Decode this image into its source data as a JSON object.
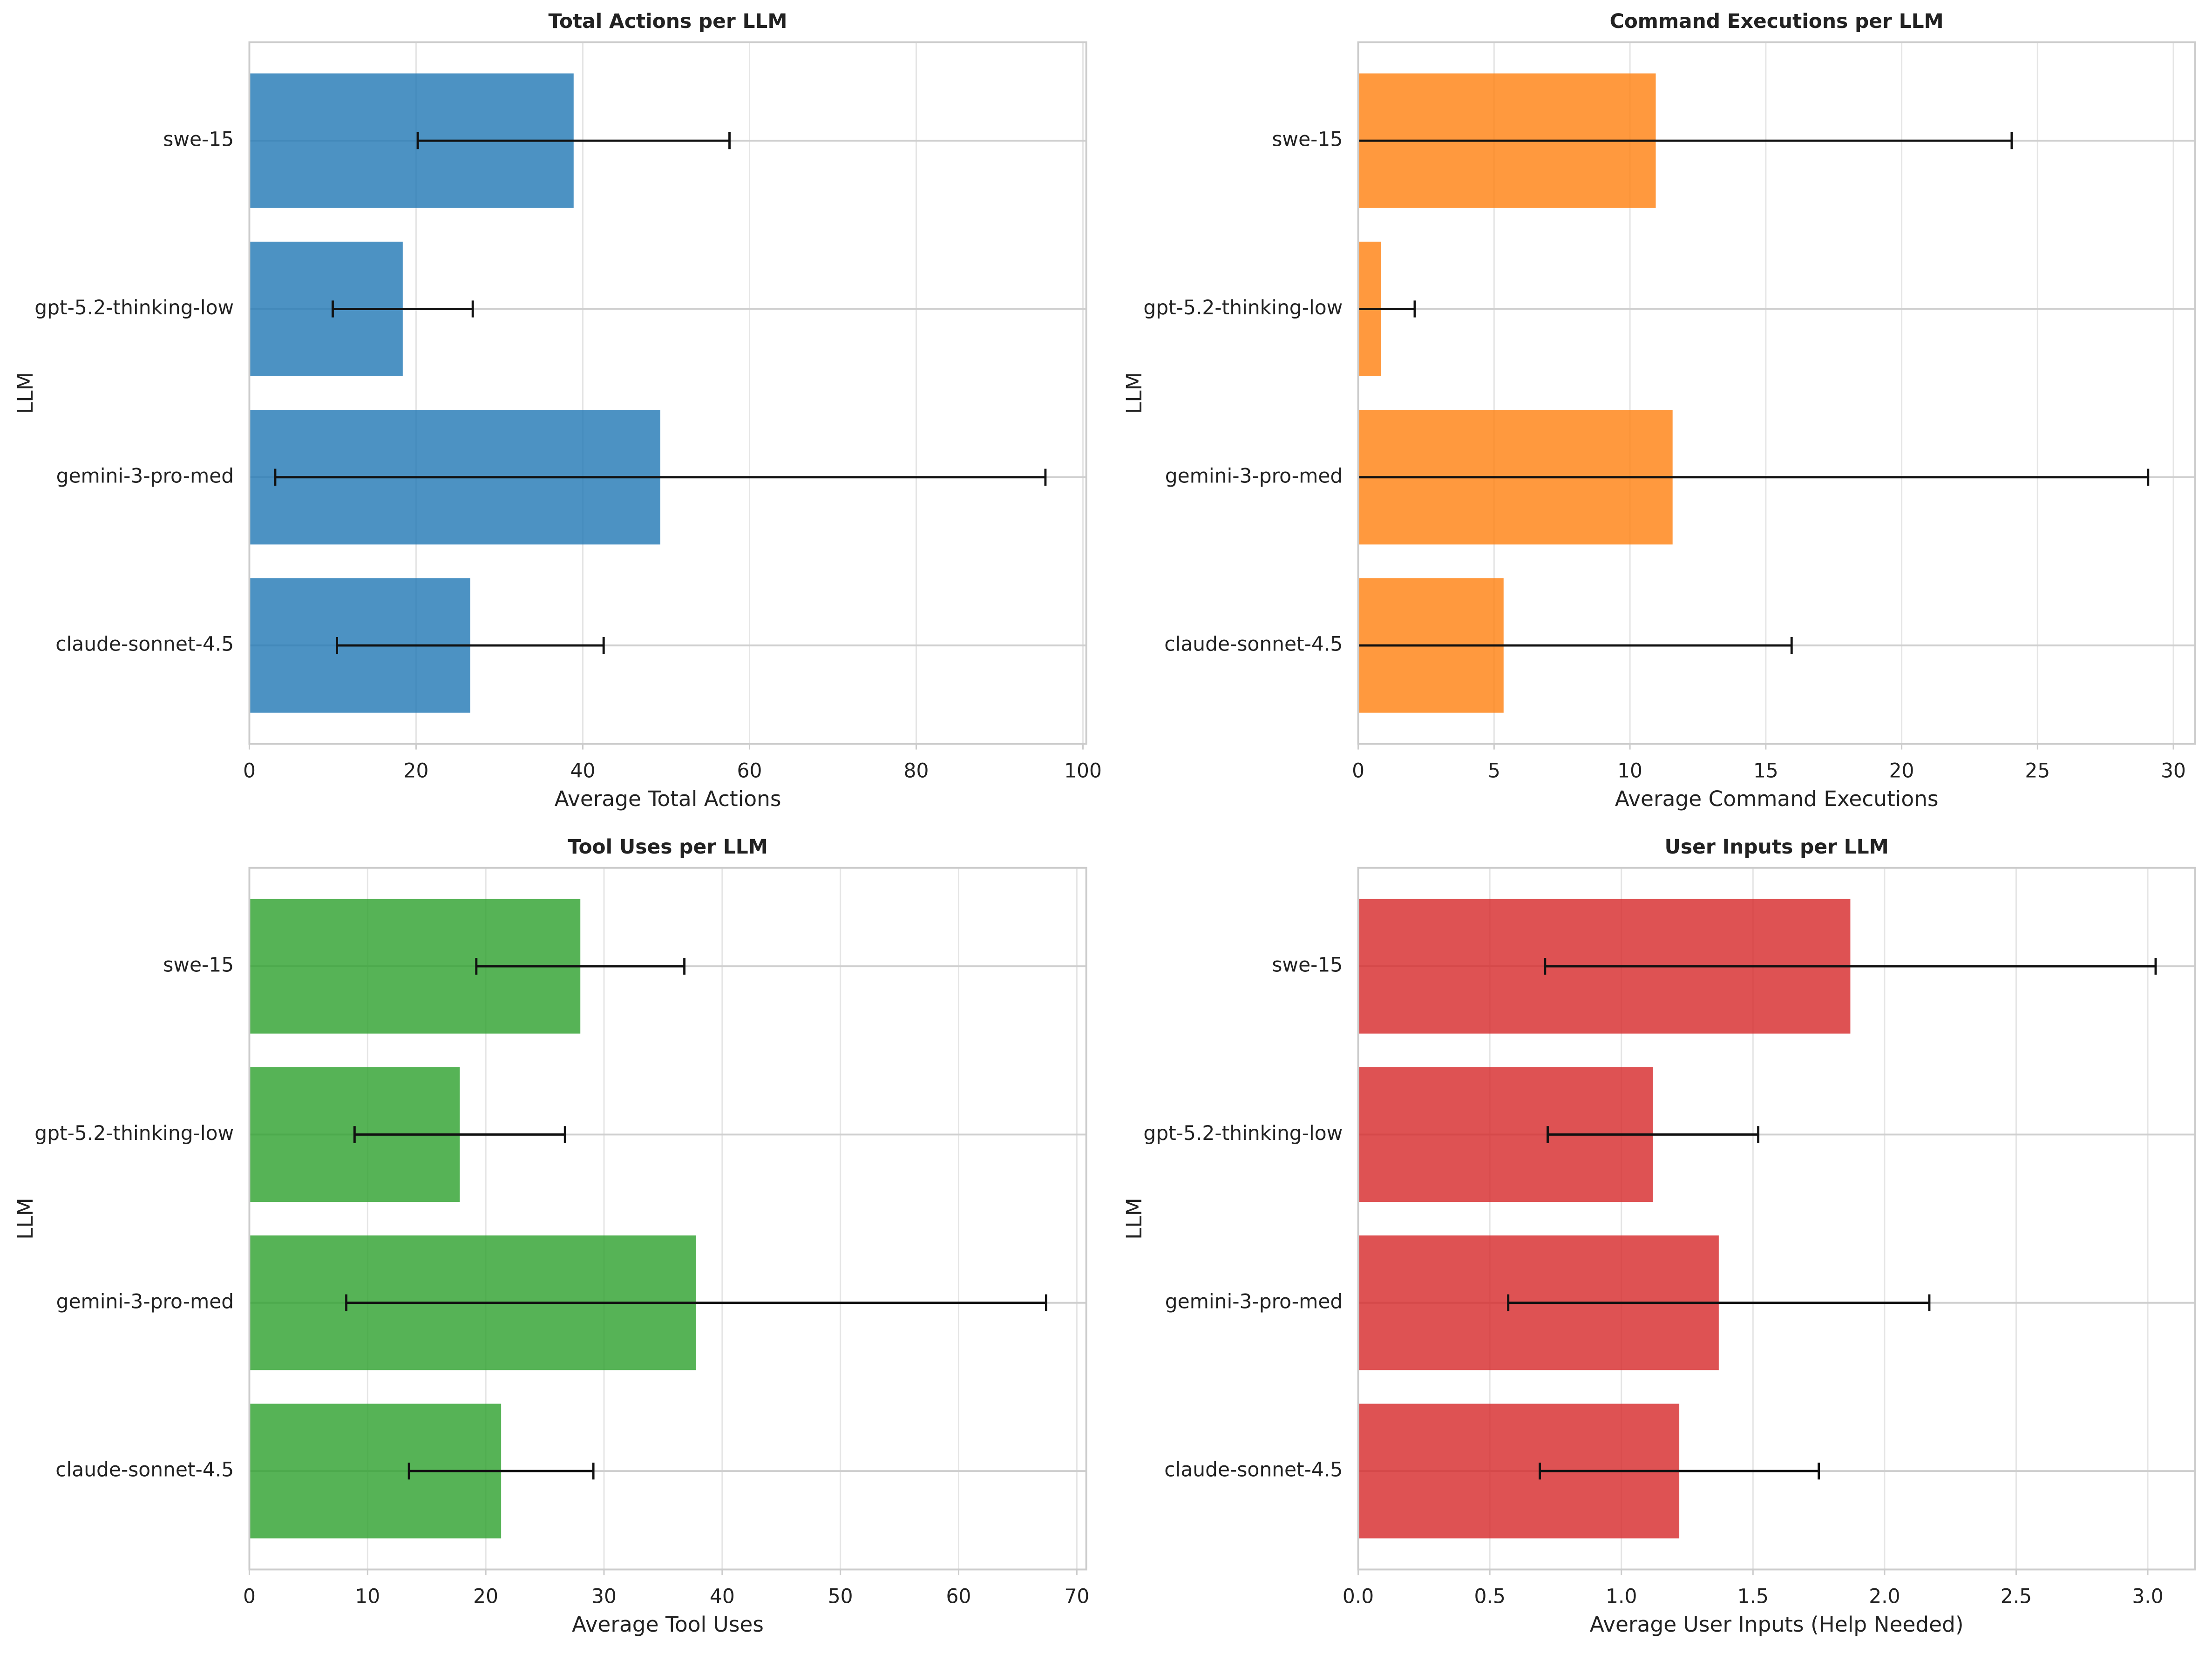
{
  "chart_data": [
    {
      "type": "bar",
      "orientation": "horizontal",
      "title": "Total Actions per LLM",
      "x_label": "Average Total Actions",
      "y_label": "LLM",
      "categories": [
        "claude-sonnet-4.5",
        "gemini-3-pro-med",
        "gpt-5.2-thinking-low",
        "swe-15"
      ],
      "values": [
        26.5,
        49.3,
        18.4,
        38.9
      ],
      "errors": [
        16.0,
        46.2,
        8.4,
        18.7
      ],
      "color": "#1f77b4",
      "xlim": [
        0,
        100.4
      ],
      "xticks": [
        0,
        20,
        40,
        60,
        80,
        100
      ],
      "grid": true
    },
    {
      "type": "bar",
      "orientation": "horizontal",
      "title": "Command Executions per LLM",
      "x_label": "Average Command Executions",
      "y_label": "LLM",
      "categories": [
        "claude-sonnet-4.5",
        "gemini-3-pro-med",
        "gpt-5.2-thinking-low",
        "swe-15"
      ],
      "values": [
        5.35,
        11.57,
        0.83,
        10.95
      ],
      "errors": [
        10.6,
        17.5,
        1.25,
        13.1
      ],
      "color": "#ff7f0e",
      "xlim": [
        0,
        30.8
      ],
      "xticks": [
        0,
        5,
        10,
        15,
        20,
        25,
        30
      ],
      "grid": true
    },
    {
      "type": "bar",
      "orientation": "horizontal",
      "title": "Tool Uses per LLM",
      "x_label": "Average Tool Uses",
      "y_label": "LLM",
      "categories": [
        "claude-sonnet-4.5",
        "gemini-3-pro-med",
        "gpt-5.2-thinking-low",
        "swe-15"
      ],
      "values": [
        21.3,
        37.8,
        17.8,
        28.0
      ],
      "errors": [
        7.8,
        29.6,
        8.9,
        8.8
      ],
      "color": "#2ca02c",
      "xlim": [
        0,
        70.8
      ],
      "xticks": [
        0,
        10,
        20,
        30,
        40,
        50,
        60,
        70
      ],
      "grid": true
    },
    {
      "type": "bar",
      "orientation": "horizontal",
      "title": "User Inputs per LLM",
      "x_label": "Average User Inputs (Help Needed)",
      "y_label": "LLM",
      "categories": [
        "claude-sonnet-4.5",
        "gemini-3-pro-med",
        "gpt-5.2-thinking-low",
        "swe-15"
      ],
      "values": [
        1.22,
        1.37,
        1.12,
        1.87
      ],
      "errors": [
        0.53,
        0.8,
        0.4,
        1.16
      ],
      "color": "#d62728",
      "xlim": [
        0,
        3.18
      ],
      "xticks": [
        {
          "value": 0,
          "label": "0.0"
        },
        0.5,
        {
          "value": 1,
          "label": "1.0"
        },
        1.5,
        {
          "value": 2,
          "label": "2.0"
        },
        2.5,
        {
          "value": 3,
          "label": "3.0"
        }
      ],
      "grid": true
    }
  ]
}
